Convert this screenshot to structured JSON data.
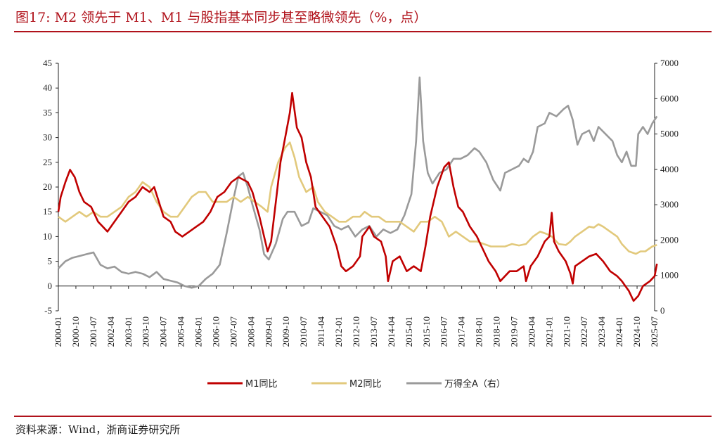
{
  "title": "图17:  M2 领先于 M1、M1 与股指基本同步甚至略微领先（%，点）",
  "source": "资料来源：Wind，浙商证券研究所",
  "colors": {
    "accent": "#b0121b",
    "m1": "#c00000",
    "m2": "#e2c97c",
    "index": "#9a9a9a"
  },
  "chart_data": {
    "type": "line",
    "x_ticks": [
      "2000-01",
      "2000-10",
      "2001-07",
      "2002-04",
      "2003-01",
      "2003-10",
      "2004-07",
      "2005-04",
      "2006-01",
      "2006-10",
      "2007-07",
      "2008-04",
      "2009-01",
      "2009-10",
      "2010-07",
      "2011-04",
      "2012-01",
      "2012-10",
      "2013-07",
      "2014-04",
      "2015-01",
      "2015-10",
      "2016-07",
      "2017-04",
      "2018-01",
      "2018-10",
      "2019-07",
      "2020-04",
      "2021-01",
      "2021-10",
      "2022-07",
      "2023-04",
      "2024-01",
      "2024-10",
      "2025-07"
    ],
    "y_left": {
      "min": -5,
      "max": 45,
      "ticks": [
        "-5",
        "0",
        "5",
        "10",
        "15",
        "20",
        "25",
        "30",
        "35",
        "40",
        "45"
      ]
    },
    "y_right": {
      "min": 0,
      "max": 7000,
      "ticks": [
        "0",
        "1000",
        "2000",
        "3000",
        "4000",
        "5000",
        "6000",
        "7000"
      ]
    },
    "legend_placement": "bottom",
    "series": [
      {
        "name": "M1同比",
        "axis": "left",
        "points": [
          [
            2000.0,
            15
          ],
          [
            2000.1,
            18
          ],
          [
            2000.3,
            21
          ],
          [
            2000.5,
            23.5
          ],
          [
            2000.7,
            22
          ],
          [
            2000.9,
            19
          ],
          [
            2001.1,
            17
          ],
          [
            2001.4,
            16
          ],
          [
            2001.7,
            13
          ],
          [
            2001.9,
            12
          ],
          [
            2002.1,
            11
          ],
          [
            2002.4,
            13
          ],
          [
            2002.7,
            15
          ],
          [
            2003.0,
            17
          ],
          [
            2003.3,
            18
          ],
          [
            2003.6,
            20
          ],
          [
            2003.9,
            19
          ],
          [
            2004.1,
            20
          ],
          [
            2004.3,
            17
          ],
          [
            2004.5,
            14
          ],
          [
            2004.8,
            13
          ],
          [
            2005.0,
            11
          ],
          [
            2005.3,
            10
          ],
          [
            2005.6,
            11
          ],
          [
            2005.9,
            12
          ],
          [
            2006.2,
            13
          ],
          [
            2006.5,
            15
          ],
          [
            2006.8,
            18
          ],
          [
            2007.1,
            19
          ],
          [
            2007.4,
            21
          ],
          [
            2007.7,
            22
          ],
          [
            2007.9,
            21.5
          ],
          [
            2008.1,
            21
          ],
          [
            2008.3,
            19
          ],
          [
            2008.6,
            14
          ],
          [
            2008.8,
            10
          ],
          [
            2008.95,
            7
          ],
          [
            2009.1,
            9
          ],
          [
            2009.3,
            17
          ],
          [
            2009.5,
            25
          ],
          [
            2009.7,
            30
          ],
          [
            2009.9,
            35
          ],
          [
            2010.0,
            39
          ],
          [
            2010.2,
            32
          ],
          [
            2010.4,
            30
          ],
          [
            2010.6,
            25
          ],
          [
            2010.8,
            22
          ],
          [
            2011.0,
            16
          ],
          [
            2011.3,
            14
          ],
          [
            2011.6,
            12
          ],
          [
            2011.9,
            8
          ],
          [
            2012.1,
            4
          ],
          [
            2012.3,
            3
          ],
          [
            2012.6,
            4
          ],
          [
            2012.9,
            6
          ],
          [
            2013.0,
            10
          ],
          [
            2013.3,
            12
          ],
          [
            2013.5,
            10
          ],
          [
            2013.8,
            9
          ],
          [
            2014.0,
            6
          ],
          [
            2014.1,
            1
          ],
          [
            2014.3,
            5
          ],
          [
            2014.6,
            6
          ],
          [
            2014.9,
            3
          ],
          [
            2015.2,
            4
          ],
          [
            2015.5,
            3
          ],
          [
            2015.7,
            8
          ],
          [
            2015.9,
            14
          ],
          [
            2016.2,
            20
          ],
          [
            2016.5,
            24
          ],
          [
            2016.7,
            25
          ],
          [
            2016.9,
            20
          ],
          [
            2017.1,
            16
          ],
          [
            2017.3,
            15
          ],
          [
            2017.6,
            12
          ],
          [
            2017.9,
            10
          ],
          [
            2018.1,
            8
          ],
          [
            2018.4,
            5
          ],
          [
            2018.7,
            3
          ],
          [
            2018.9,
            1
          ],
          [
            2019.1,
            2
          ],
          [
            2019.3,
            3
          ],
          [
            2019.6,
            3
          ],
          [
            2019.9,
            4
          ],
          [
            2020.0,
            1
          ],
          [
            2020.2,
            4
          ],
          [
            2020.5,
            6
          ],
          [
            2020.8,
            9
          ],
          [
            2021.0,
            10
          ],
          [
            2021.1,
            14.8
          ],
          [
            2021.2,
            9
          ],
          [
            2021.4,
            7
          ],
          [
            2021.7,
            5
          ],
          [
            2021.9,
            2.5
          ],
          [
            2022.0,
            0.5
          ],
          [
            2022.1,
            4
          ],
          [
            2022.4,
            5
          ],
          [
            2022.7,
            6
          ],
          [
            2023.0,
            6.5
          ],
          [
            2023.3,
            5
          ],
          [
            2023.6,
            3
          ],
          [
            2023.9,
            2
          ],
          [
            2024.1,
            1
          ],
          [
            2024.4,
            -1
          ],
          [
            2024.6,
            -3
          ],
          [
            2024.8,
            -2
          ],
          [
            2025.0,
            0
          ],
          [
            2025.3,
            1
          ],
          [
            2025.5,
            2
          ],
          [
            2025.6,
            4.5
          ]
        ]
      },
      {
        "name": "M2同比",
        "axis": "left",
        "points": [
          [
            2000.0,
            14
          ],
          [
            2000.3,
            13
          ],
          [
            2000.6,
            14
          ],
          [
            2000.9,
            15
          ],
          [
            2001.2,
            14
          ],
          [
            2001.5,
            15
          ],
          [
            2001.8,
            14
          ],
          [
            2002.1,
            14
          ],
          [
            2002.4,
            15
          ],
          [
            2002.7,
            16
          ],
          [
            2003.0,
            18
          ],
          [
            2003.3,
            19
          ],
          [
            2003.6,
            21
          ],
          [
            2003.9,
            20
          ],
          [
            2004.2,
            17
          ],
          [
            2004.5,
            15
          ],
          [
            2004.8,
            14
          ],
          [
            2005.1,
            14
          ],
          [
            2005.4,
            16
          ],
          [
            2005.7,
            18
          ],
          [
            2006.0,
            19
          ],
          [
            2006.3,
            19
          ],
          [
            2006.6,
            17
          ],
          [
            2006.9,
            17
          ],
          [
            2007.2,
            17
          ],
          [
            2007.5,
            18
          ],
          [
            2007.8,
            17
          ],
          [
            2008.1,
            18
          ],
          [
            2008.4,
            17
          ],
          [
            2008.7,
            16
          ],
          [
            2008.95,
            15
          ],
          [
            2009.1,
            20
          ],
          [
            2009.4,
            25
          ],
          [
            2009.7,
            28
          ],
          [
            2009.9,
            29
          ],
          [
            2010.1,
            26
          ],
          [
            2010.3,
            22
          ],
          [
            2010.6,
            19
          ],
          [
            2010.9,
            20
          ],
          [
            2011.1,
            17
          ],
          [
            2011.4,
            15
          ],
          [
            2011.7,
            14
          ],
          [
            2012.0,
            13
          ],
          [
            2012.3,
            13
          ],
          [
            2012.6,
            14
          ],
          [
            2012.9,
            14
          ],
          [
            2013.1,
            15
          ],
          [
            2013.4,
            14
          ],
          [
            2013.7,
            14
          ],
          [
            2014.0,
            13
          ],
          [
            2014.3,
            13
          ],
          [
            2014.6,
            13
          ],
          [
            2014.9,
            12
          ],
          [
            2015.2,
            11
          ],
          [
            2015.5,
            13
          ],
          [
            2015.8,
            13
          ],
          [
            2016.1,
            14
          ],
          [
            2016.4,
            13
          ],
          [
            2016.7,
            10
          ],
          [
            2017.0,
            11
          ],
          [
            2017.3,
            10
          ],
          [
            2017.6,
            9
          ],
          [
            2017.9,
            9
          ],
          [
            2018.2,
            8.5
          ],
          [
            2018.5,
            8
          ],
          [
            2018.8,
            8
          ],
          [
            2019.1,
            8
          ],
          [
            2019.4,
            8.5
          ],
          [
            2019.7,
            8.2
          ],
          [
            2020.0,
            8.5
          ],
          [
            2020.3,
            10
          ],
          [
            2020.6,
            11
          ],
          [
            2020.9,
            10.5
          ],
          [
            2021.1,
            10
          ],
          [
            2021.4,
            8.5
          ],
          [
            2021.7,
            8.3
          ],
          [
            2021.9,
            9
          ],
          [
            2022.1,
            10
          ],
          [
            2022.4,
            11
          ],
          [
            2022.7,
            12
          ],
          [
            2022.9,
            11.8
          ],
          [
            2023.1,
            12.5
          ],
          [
            2023.3,
            12
          ],
          [
            2023.6,
            11
          ],
          [
            2023.9,
            10
          ],
          [
            2024.1,
            8.5
          ],
          [
            2024.4,
            7
          ],
          [
            2024.7,
            6.5
          ],
          [
            2024.9,
            7
          ],
          [
            2025.1,
            7
          ],
          [
            2025.4,
            8
          ],
          [
            2025.6,
            8.3
          ]
        ]
      },
      {
        "name": "万得全A（右）",
        "axis": "right",
        "points": [
          [
            2000.0,
            1200
          ],
          [
            2000.3,
            1400
          ],
          [
            2000.6,
            1500
          ],
          [
            2000.9,
            1550
          ],
          [
            2001.2,
            1600
          ],
          [
            2001.5,
            1650
          ],
          [
            2001.8,
            1300
          ],
          [
            2002.1,
            1200
          ],
          [
            2002.4,
            1250
          ],
          [
            2002.7,
            1100
          ],
          [
            2003.0,
            1050
          ],
          [
            2003.3,
            1100
          ],
          [
            2003.6,
            1050
          ],
          [
            2003.9,
            950
          ],
          [
            2004.2,
            1100
          ],
          [
            2004.5,
            900
          ],
          [
            2004.8,
            850
          ],
          [
            2005.1,
            800
          ],
          [
            2005.4,
            700
          ],
          [
            2005.7,
            650
          ],
          [
            2006.0,
            700
          ],
          [
            2006.3,
            900
          ],
          [
            2006.6,
            1050
          ],
          [
            2006.9,
            1300
          ],
          [
            2007.2,
            2200
          ],
          [
            2007.5,
            3200
          ],
          [
            2007.7,
            3800
          ],
          [
            2007.9,
            3900
          ],
          [
            2008.1,
            3500
          ],
          [
            2008.3,
            3000
          ],
          [
            2008.6,
            2300
          ],
          [
            2008.8,
            1600
          ],
          [
            2009.0,
            1450
          ],
          [
            2009.3,
            1900
          ],
          [
            2009.6,
            2600
          ],
          [
            2009.8,
            2800
          ],
          [
            2010.1,
            2800
          ],
          [
            2010.4,
            2400
          ],
          [
            2010.7,
            2500
          ],
          [
            2010.9,
            2900
          ],
          [
            2011.2,
            2800
          ],
          [
            2011.5,
            2700
          ],
          [
            2011.8,
            2400
          ],
          [
            2012.1,
            2300
          ],
          [
            2012.4,
            2400
          ],
          [
            2012.7,
            2100
          ],
          [
            2013.0,
            2300
          ],
          [
            2013.3,
            2400
          ],
          [
            2013.6,
            2100
          ],
          [
            2013.9,
            2300
          ],
          [
            2014.2,
            2200
          ],
          [
            2014.5,
            2300
          ],
          [
            2014.8,
            2700
          ],
          [
            2015.1,
            3300
          ],
          [
            2015.3,
            4800
          ],
          [
            2015.45,
            6600
          ],
          [
            2015.6,
            4800
          ],
          [
            2015.8,
            3900
          ],
          [
            2016.0,
            3600
          ],
          [
            2016.3,
            3900
          ],
          [
            2016.6,
            4000
          ],
          [
            2016.9,
            4300
          ],
          [
            2017.2,
            4300
          ],
          [
            2017.5,
            4400
          ],
          [
            2017.8,
            4600
          ],
          [
            2018.0,
            4500
          ],
          [
            2018.3,
            4200
          ],
          [
            2018.6,
            3700
          ],
          [
            2018.9,
            3400
          ],
          [
            2019.1,
            3900
          ],
          [
            2019.4,
            4000
          ],
          [
            2019.7,
            4100
          ],
          [
            2019.9,
            4300
          ],
          [
            2020.1,
            4200
          ],
          [
            2020.3,
            4500
          ],
          [
            2020.5,
            5200
          ],
          [
            2020.8,
            5300
          ],
          [
            2021.0,
            5600
          ],
          [
            2021.3,
            5500
          ],
          [
            2021.6,
            5700
          ],
          [
            2021.8,
            5800
          ],
          [
            2022.0,
            5400
          ],
          [
            2022.2,
            4700
          ],
          [
            2022.4,
            5000
          ],
          [
            2022.7,
            5100
          ],
          [
            2022.9,
            4800
          ],
          [
            2023.1,
            5200
          ],
          [
            2023.4,
            5000
          ],
          [
            2023.7,
            4800
          ],
          [
            2023.9,
            4400
          ],
          [
            2024.1,
            4200
          ],
          [
            2024.3,
            4500
          ],
          [
            2024.5,
            4100
          ],
          [
            2024.7,
            4100
          ],
          [
            2024.8,
            5000
          ],
          [
            2025.0,
            5200
          ],
          [
            2025.2,
            5000
          ],
          [
            2025.4,
            5300
          ],
          [
            2025.6,
            5500
          ]
        ]
      }
    ]
  }
}
